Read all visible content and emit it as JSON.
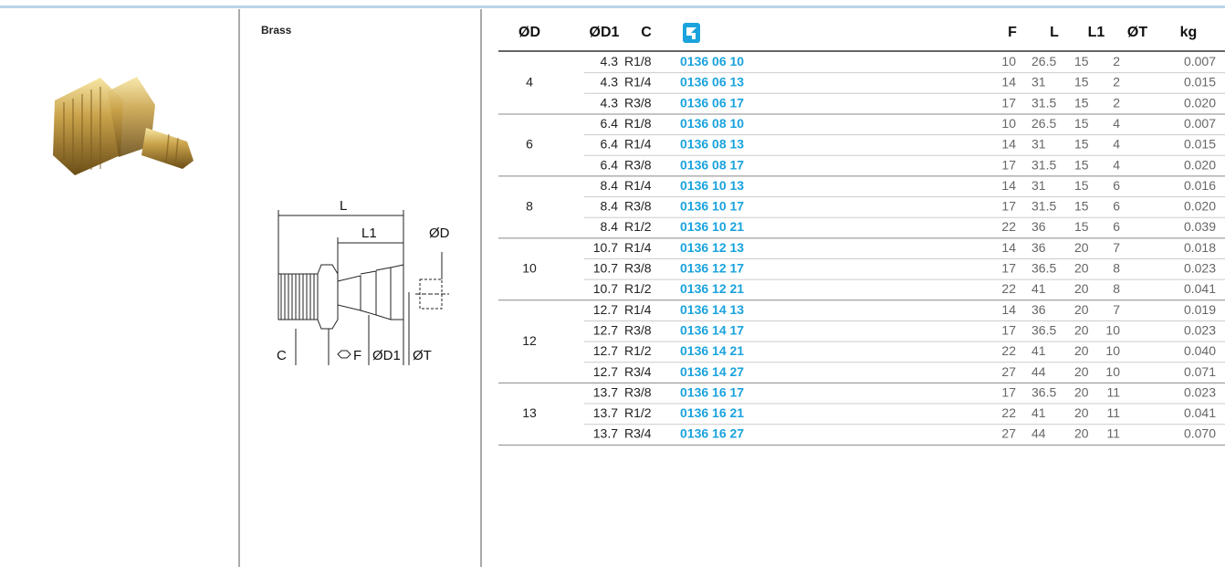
{
  "panel": {
    "material": "Brass"
  },
  "diagram": {
    "labels": {
      "l": "L",
      "l1": "L1",
      "od": "ØD",
      "c": "C",
      "f": "F",
      "od1": "ØD1",
      "ot": "ØT"
    }
  },
  "table": {
    "headers": [
      "ØD",
      "ØD1",
      "C",
      "F",
      "L",
      "L1",
      "ØT",
      "kg"
    ],
    "groups": [
      {
        "d": "4",
        "rows": [
          [
            "4.3",
            "R1/8",
            "0136 06 10",
            "10",
            "26.5",
            "15",
            "2",
            "0.007"
          ],
          [
            "4.3",
            "R1/4",
            "0136 06 13",
            "14",
            "31",
            "15",
            "2",
            "0.015"
          ],
          [
            "4.3",
            "R3/8",
            "0136 06 17",
            "17",
            "31.5",
            "15",
            "2",
            "0.020"
          ]
        ]
      },
      {
        "d": "6",
        "rows": [
          [
            "6.4",
            "R1/8",
            "0136 08 10",
            "10",
            "26.5",
            "15",
            "4",
            "0.007"
          ],
          [
            "6.4",
            "R1/4",
            "0136 08 13",
            "14",
            "31",
            "15",
            "4",
            "0.015"
          ],
          [
            "6.4",
            "R3/8",
            "0136 08 17",
            "17",
            "31.5",
            "15",
            "4",
            "0.020"
          ]
        ]
      },
      {
        "d": "8",
        "rows": [
          [
            "8.4",
            "R1/4",
            "0136 10 13",
            "14",
            "31",
            "15",
            "6",
            "0.016"
          ],
          [
            "8.4",
            "R3/8",
            "0136 10 17",
            "17",
            "31.5",
            "15",
            "6",
            "0.020"
          ],
          [
            "8.4",
            "R1/2",
            "0136 10 21",
            "22",
            "36",
            "15",
            "6",
            "0.039"
          ]
        ]
      },
      {
        "d": "10",
        "rows": [
          [
            "10.7",
            "R1/4",
            "0136 12 13",
            "14",
            "36",
            "20",
            "7",
            "0.018"
          ],
          [
            "10.7",
            "R3/8",
            "0136 12 17",
            "17",
            "36.5",
            "20",
            "8",
            "0.023"
          ],
          [
            "10.7",
            "R1/2",
            "0136 12 21",
            "22",
            "41",
            "20",
            "8",
            "0.041"
          ]
        ]
      },
      {
        "d": "12",
        "rows": [
          [
            "12.7",
            "R1/4",
            "0136 14 13",
            "14",
            "36",
            "20",
            "7",
            "0.019"
          ],
          [
            "12.7",
            "R3/8",
            "0136 14 17",
            "17",
            "36.5",
            "20",
            "10",
            "0.023"
          ],
          [
            "12.7",
            "R1/2",
            "0136 14 21",
            "22",
            "41",
            "20",
            "10",
            "0.040"
          ],
          [
            "12.7",
            "R3/4",
            "0136 14 27",
            "27",
            "44",
            "20",
            "10",
            "0.071"
          ]
        ]
      },
      {
        "d": "13",
        "rows": [
          [
            "13.7",
            "R3/8",
            "0136 16 17",
            "17",
            "36.5",
            "20",
            "11",
            "0.023"
          ],
          [
            "13.7",
            "R1/2",
            "0136 16 21",
            "22",
            "41",
            "20",
            "11",
            "0.041"
          ],
          [
            "13.7",
            "R3/4",
            "0136 16 27",
            "27",
            "44",
            "20",
            "11",
            "0.070"
          ]
        ]
      }
    ]
  }
}
